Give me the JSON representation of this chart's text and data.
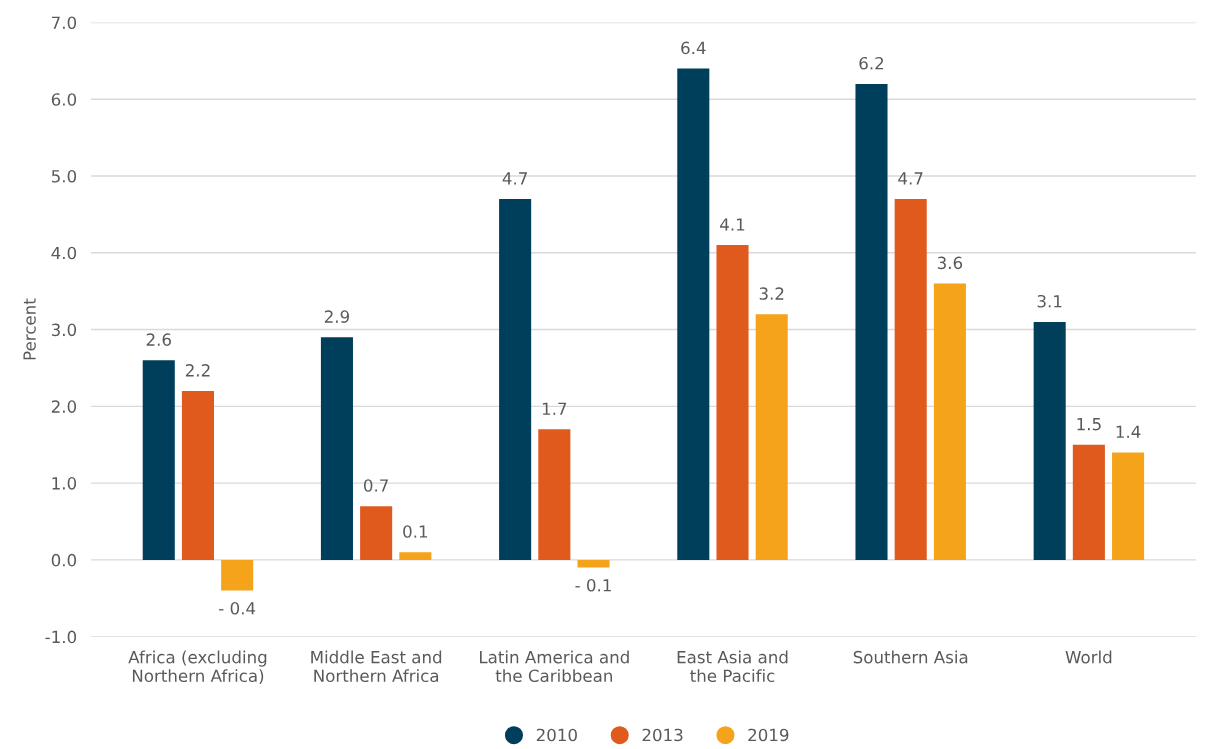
{
  "chart_data": {
    "type": "bar",
    "categories": [
      "Africa (excluding\nNorthern Africa)",
      "Middle East and\nNorthern Africa",
      "Latin America and\nthe Caribbean",
      "East Asia and\nthe Pacific",
      "Southern Asia",
      "World"
    ],
    "ylabel": "Percent",
    "series": [
      {
        "name": "2010",
        "color": "#003f5c",
        "values": [
          2.6,
          2.9,
          4.7,
          6.4,
          6.2,
          3.1
        ],
        "value_labels": [
          "2.6",
          "2.9",
          "4.7",
          "6.4",
          "6.2",
          "3.1"
        ]
      },
      {
        "name": "2013",
        "color": "#e05a1e",
        "values": [
          2.2,
          0.7,
          1.7,
          4.1,
          4.7,
          1.5
        ],
        "value_labels": [
          "2.2",
          "0.7",
          "1.7",
          "4.1",
          "4.7",
          "1.5"
        ]
      },
      {
        "name": "2019",
        "color": "#f5a31a",
        "values": [
          -0.4,
          0.1,
          -0.1,
          3.2,
          3.6,
          1.4
        ],
        "value_labels": [
          "- 0.4",
          "0.1",
          "- 0.1",
          "3.2",
          "3.6",
          "1.4"
        ]
      }
    ],
    "ylim": [
      -1.0,
      7.0
    ],
    "yticks": [
      {
        "value": -1.0,
        "label": "-1.0"
      },
      {
        "value": 0.0,
        "label": "0.0"
      },
      {
        "value": 1.0,
        "label": "1.0"
      },
      {
        "value": 2.0,
        "label": "2.0"
      },
      {
        "value": 3.0,
        "label": "3.0"
      },
      {
        "value": 4.0,
        "label": "4.0"
      },
      {
        "value": 5.0,
        "label": "5.0"
      },
      {
        "value": 6.0,
        "label": "6.0"
      },
      {
        "value": 7.0,
        "label": "7.0"
      }
    ],
    "grid": "y",
    "legend": "bottom"
  }
}
